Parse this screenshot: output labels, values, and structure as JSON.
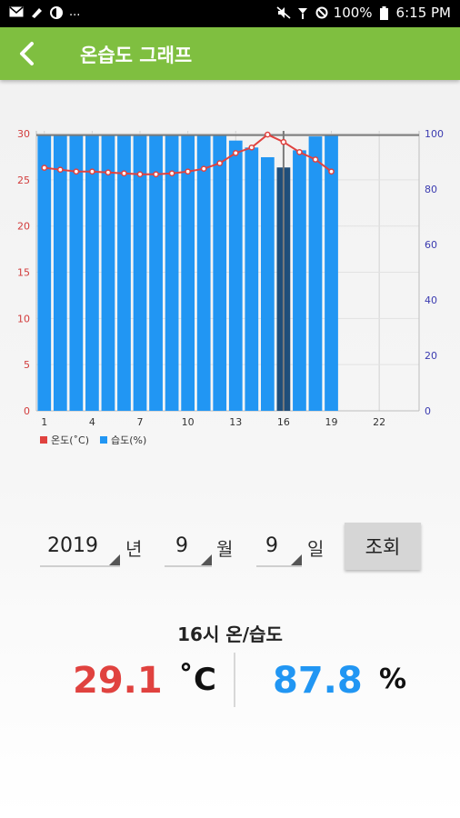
{
  "status_bar": {
    "battery": "100%",
    "time": "6:15 PM",
    "overflow": "...",
    "left_icons": [
      "mail-icon",
      "ticket-icon",
      "circle-half-icon"
    ],
    "right_icons": [
      "mute-icon",
      "signal-icon",
      "block-icon",
      "battery-icon"
    ]
  },
  "app_bar": {
    "title": "온습도 그래프",
    "back_icon": "chevron-left-icon"
  },
  "chart_data": {
    "type": "bar",
    "x": [
      1,
      2,
      3,
      4,
      5,
      6,
      7,
      8,
      9,
      10,
      11,
      12,
      13,
      14,
      15,
      16,
      17,
      18,
      19
    ],
    "x_ticks": [
      "1",
      "4",
      "7",
      "10",
      "13",
      "16",
      "19",
      "22"
    ],
    "x_range": [
      0.5,
      24.5
    ],
    "series": [
      {
        "name": "온도(˚C)",
        "type": "line",
        "axis": "left",
        "color": "#e0423f",
        "values": [
          26.3,
          26.1,
          25.9,
          25.9,
          25.8,
          25.7,
          25.6,
          25.6,
          25.7,
          25.9,
          26.2,
          26.8,
          27.9,
          28.5,
          29.9,
          29.1,
          28.0,
          27.2,
          25.9
        ]
      },
      {
        "name": "습도(%)",
        "type": "bar",
        "axis": "right",
        "color": "#2196f3",
        "values": [
          99.5,
          99.5,
          99.5,
          99.5,
          99.5,
          99.5,
          99.5,
          99.5,
          99.5,
          99.5,
          99.5,
          99.5,
          97.5,
          95.0,
          91.5,
          87.8,
          94.0,
          99.0,
          99.5
        ]
      }
    ],
    "left_axis": {
      "ticks": [
        "0",
        "5",
        "10",
        "15",
        "20",
        "25",
        "30"
      ],
      "range": [
        0,
        30.3
      ]
    },
    "right_axis": {
      "ticks": [
        "0",
        "20",
        "40",
        "60",
        "80",
        "100"
      ],
      "range": [
        0,
        101
      ]
    },
    "highlight": {
      "x": 16,
      "bar_color": "#1f4e7a"
    },
    "grid": true,
    "legend": "bottom-left"
  },
  "controls": {
    "year": "2019",
    "year_unit": "년",
    "month": "9",
    "month_unit": "월",
    "day": "9",
    "day_unit": "일",
    "query_label": "조회"
  },
  "readout": {
    "title": "16시 온/습도",
    "temperature": "29.1",
    "temperature_unit": "˚C",
    "humidity": "87.8",
    "humidity_unit": "%"
  }
}
